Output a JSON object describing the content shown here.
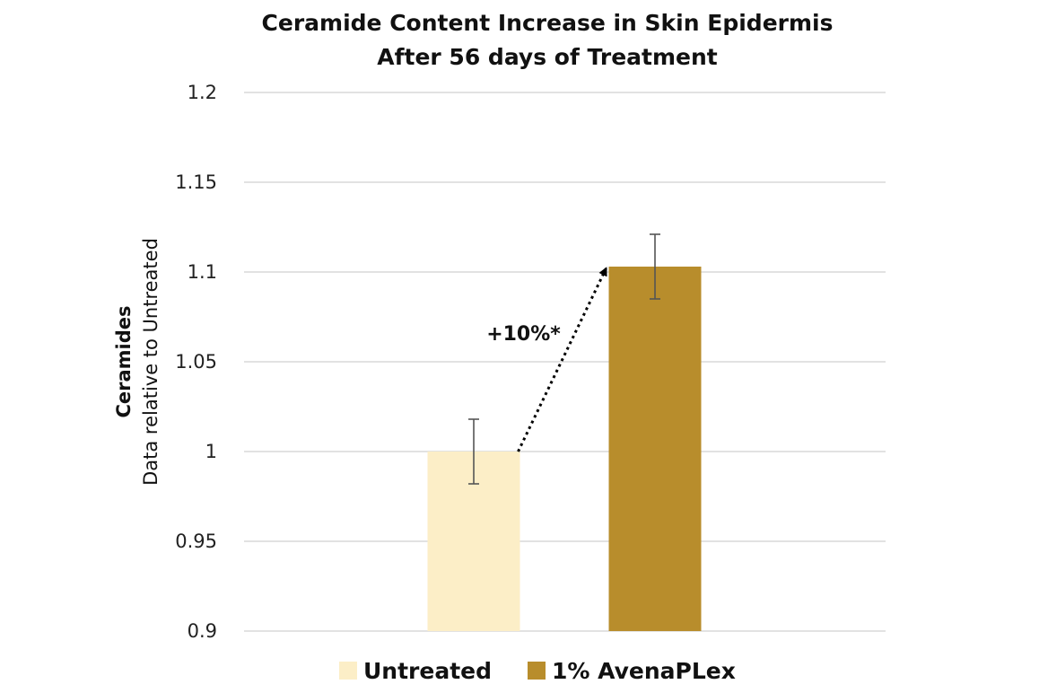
{
  "chart_data": {
    "type": "bar",
    "title_lines": [
      "Ceramide Content Increase in Skin Epidermis",
      "After 56 days of Treatment"
    ],
    "ylabel_bold": "Ceramides",
    "ylabel": "Data relative to Untreated",
    "ylim": [
      0.9,
      1.2
    ],
    "yticks": [
      0.9,
      0.95,
      1.0,
      1.05,
      1.1,
      1.15,
      1.2
    ],
    "ytick_labels": [
      "0.9",
      "0.95",
      "1",
      "1.05",
      "1.1",
      "1.15",
      "1.2"
    ],
    "grid": true,
    "categories": [
      "Untreated",
      "1% AvenaPLex"
    ],
    "values": [
      1.0,
      1.103
    ],
    "error_low": [
      0.982,
      1.085
    ],
    "error_high": [
      1.018,
      1.121
    ],
    "colors": [
      "#FCEEC7",
      "#B88D2C"
    ],
    "annotation": {
      "text": "+10%*",
      "from_category": "Untreated",
      "to_category": "1% AvenaPLex"
    },
    "legend": [
      {
        "label": "Untreated",
        "color": "#FCEEC7"
      },
      {
        "label": "1% AvenaPLex",
        "color": "#B88D2C"
      }
    ],
    "legend_position": "bottom"
  }
}
